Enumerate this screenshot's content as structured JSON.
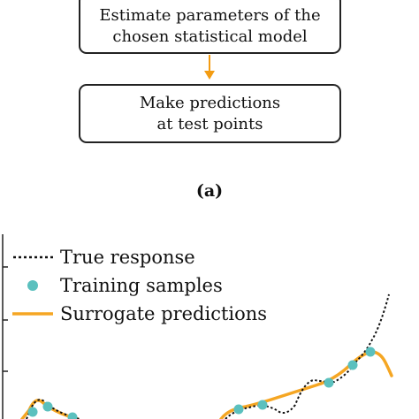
{
  "flowchart": {
    "steps": [
      {
        "line1": "Estimate parameters of the",
        "line2": "chosen statistical model"
      },
      {
        "line1": "Make predictions",
        "line2": "at test points"
      }
    ],
    "arrow_color": "#f39c12"
  },
  "caption": "(a)",
  "plot": {
    "legend": {
      "true_response": "True response",
      "training_samples": "Training samples",
      "surrogate_predictions": "Surrogate predictions"
    },
    "colors": {
      "true": "#111111",
      "samples": "#5bc0be",
      "surrogate": "#f5a623"
    }
  }
}
